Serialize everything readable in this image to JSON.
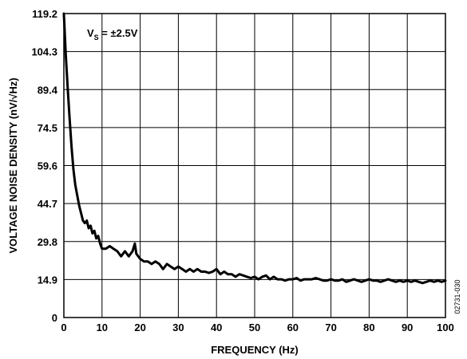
{
  "chart_data": {
    "type": "line",
    "title": "",
    "xlabel": "FREQUENCY (Hz)",
    "ylabel": "VOLTAGE NOISE DENSITY (nV/√Hz)",
    "xlim": [
      0,
      100
    ],
    "ylim": [
      0,
      119.2
    ],
    "x_ticks": [
      0,
      10,
      20,
      30,
      40,
      50,
      60,
      70,
      80,
      90,
      100
    ],
    "y_ticks": [
      0,
      14.9,
      29.8,
      44.7,
      59.6,
      74.5,
      89.4,
      104.3,
      119.2
    ],
    "x_tick_labels": [
      "0",
      "10",
      "20",
      "30",
      "40",
      "50",
      "60",
      "70",
      "80",
      "90",
      "100"
    ],
    "y_tick_labels": [
      "0",
      "14.9",
      "29.8",
      "44.7",
      "59.6",
      "74.5",
      "89.4",
      "104.3",
      "119.2"
    ],
    "grid": true,
    "annotation": {
      "prefix": "V",
      "subscript": "S",
      "suffix": " = ±2.5V"
    },
    "figure_id": "02731-030",
    "series": [
      {
        "color": "#000000",
        "x": [
          0,
          0.5,
          1,
          1.5,
          2,
          2.5,
          3,
          3.5,
          4,
          4.5,
          5,
          5.5,
          6,
          6.5,
          7,
          7.5,
          8,
          8.5,
          9,
          9.5,
          10,
          11,
          12,
          13,
          14,
          15,
          16,
          17,
          18,
          18.6,
          19,
          20,
          21,
          22,
          23,
          24,
          25,
          26,
          27,
          28,
          29,
          30,
          31,
          32,
          33,
          34,
          35,
          36,
          37,
          38,
          39,
          40,
          41,
          42,
          43,
          44,
          45,
          46,
          47,
          48,
          49,
          50,
          51,
          52,
          53,
          54,
          55,
          56,
          57,
          58,
          59,
          60,
          61,
          62,
          63,
          64,
          65,
          66,
          67,
          68,
          69,
          70,
          71,
          72,
          73,
          74,
          75,
          76,
          77,
          78,
          79,
          80,
          81,
          82,
          83,
          84,
          85,
          86,
          87,
          88,
          89,
          90,
          91,
          92,
          93,
          94,
          95,
          96,
          97,
          98,
          99,
          100
        ],
        "y": [
          119.2,
          103,
          90,
          78,
          67,
          58,
          52,
          48,
          44,
          41,
          38,
          37,
          38,
          35,
          36,
          33,
          34,
          31,
          32,
          29,
          27,
          27,
          28,
          27,
          26,
          24,
          26,
          24,
          26,
          29,
          25,
          23,
          22,
          22,
          21,
          22,
          21,
          19,
          21,
          20,
          19,
          20,
          19,
          18,
          19,
          18,
          19,
          18,
          18,
          17.5,
          18,
          19,
          17,
          18,
          17,
          17,
          16,
          17,
          16.5,
          16,
          15.5,
          16,
          15,
          16,
          16.5,
          15,
          16,
          15,
          15,
          14.5,
          15,
          15,
          15.5,
          14.5,
          15,
          15,
          15,
          15.5,
          15,
          14.5,
          14.5,
          15,
          14.5,
          14.5,
          15,
          14,
          14.5,
          15,
          14.5,
          14,
          14.5,
          15,
          14.5,
          14.5,
          14,
          14.5,
          15,
          14.5,
          14,
          14.5,
          14,
          14.5,
          14,
          14.5,
          14,
          13.5,
          14,
          14.5,
          14,
          14.5,
          14,
          14.5
        ]
      }
    ]
  }
}
